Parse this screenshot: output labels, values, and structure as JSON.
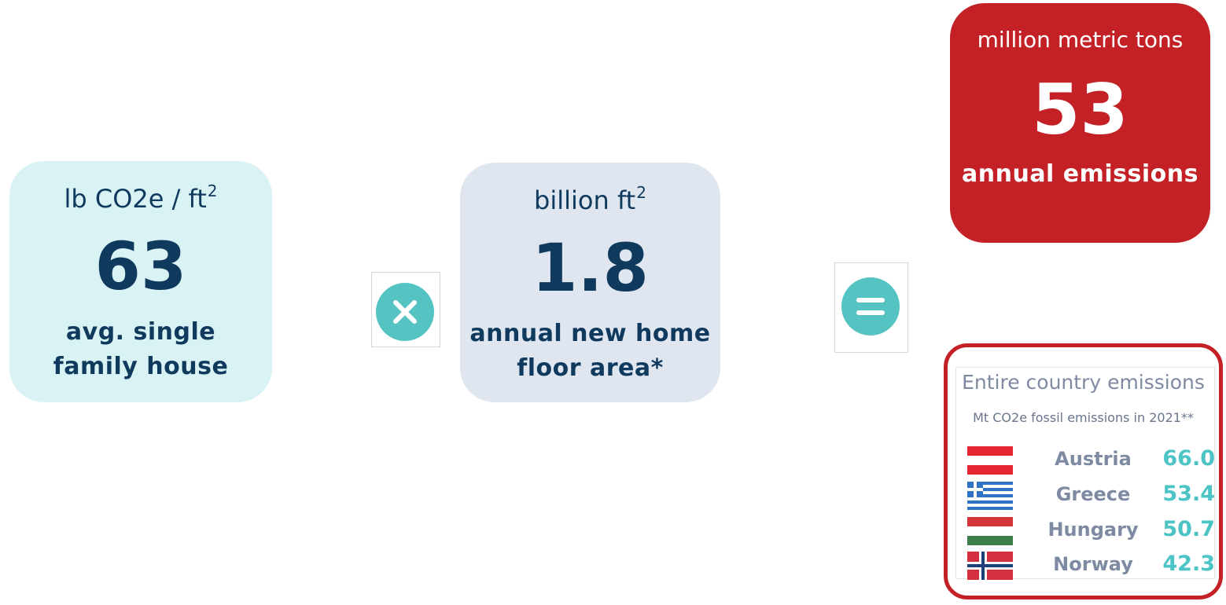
{
  "card_house": {
    "unit": "lb CO2e / ft",
    "unit_sup": "2",
    "value": "63",
    "desc_line1": "avg. single",
    "desc_line2": "family house"
  },
  "card_area": {
    "unit": "billion ft",
    "unit_sup": "2",
    "value": "1.8",
    "desc_line1": "annual new home",
    "desc_line2": "floor area*"
  },
  "operators": {
    "times": "multiply-icon",
    "equals": "equals-icon"
  },
  "result": {
    "unit": "million metric tons",
    "value": "53",
    "desc": "annual emissions"
  },
  "comparison": {
    "title": "Entire country emissions",
    "subtitle": "Mt CO2e fossil emissions in 2021**",
    "rows": [
      {
        "flag": "austria-flag-icon",
        "country": "Austria",
        "value": "66.0"
      },
      {
        "flag": "greece-flag-icon",
        "country": "Greece",
        "value": "53.4"
      },
      {
        "flag": "hungary-flag-icon",
        "country": "Hungary",
        "value": "50.7"
      },
      {
        "flag": "norway-flag-icon",
        "country": "Norway",
        "value": "42.3"
      }
    ]
  },
  "colors": {
    "navy": "#0f3a5e",
    "teal": "#56c3c3",
    "red": "#c32126",
    "light_cyan": "#d9f3f5",
    "light_slate": "#dfe6f0"
  }
}
